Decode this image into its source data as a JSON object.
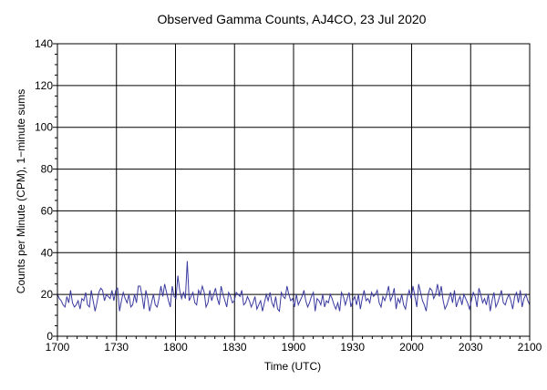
{
  "chart_data": {
    "type": "line",
    "title": "Observed Gamma Counts, AJ4CO, 23 Jul 2020",
    "xlabel": "Time (UTC)",
    "ylabel": "Counts per Minute (CPM), 1−minute sums",
    "x_tick_labels": [
      "1700",
      "1730",
      "1800",
      "1830",
      "1900",
      "1930",
      "2000",
      "2030",
      "2100"
    ],
    "y_ticks": [
      0,
      20,
      40,
      60,
      80,
      100,
      120,
      140
    ],
    "xlim_minutes": [
      0,
      240
    ],
    "ylim": [
      0,
      140
    ],
    "grid": true,
    "line_color": "#3a3aa0",
    "series": [
      {
        "values": [
          20,
          18,
          17,
          15,
          14,
          19,
          16,
          22,
          16,
          14,
          15,
          17,
          13,
          18,
          17,
          21,
          15,
          14,
          22,
          17,
          12,
          16,
          21,
          23,
          22,
          17,
          20,
          19,
          18,
          22,
          17,
          22,
          23,
          12,
          17,
          21,
          18,
          16,
          20,
          14,
          15,
          20,
          16,
          24,
          24,
          19,
          13,
          22,
          18,
          12,
          16,
          20,
          15,
          14,
          18,
          24,
          19,
          25,
          21,
          17,
          14,
          24,
          19,
          18,
          29,
          22,
          18,
          21,
          18,
          36,
          17,
          19,
          21,
          16,
          15,
          22,
          20,
          24,
          21,
          14,
          16,
          22,
          17,
          20,
          23,
          18,
          15,
          24,
          20,
          17,
          14,
          21,
          19,
          16,
          17,
          21,
          20,
          19,
          22,
          15,
          16,
          19,
          17,
          14,
          16,
          19,
          13,
          15,
          17,
          12,
          16,
          20,
          17,
          21,
          16,
          14,
          19,
          13,
          12,
          21,
          19,
          18,
          24,
          20,
          17,
          18,
          14,
          20,
          15,
          17,
          19,
          22,
          17,
          14,
          16,
          19,
          21,
          12,
          18,
          17,
          15,
          20,
          14,
          17,
          16,
          20,
          18,
          15,
          13,
          16,
          12,
          21,
          19,
          15,
          18,
          21,
          14,
          17,
          19,
          15,
          20,
          13,
          18,
          22,
          17,
          18,
          16,
          21,
          19,
          20,
          22,
          16,
          14,
          19,
          17,
          20,
          24,
          17,
          19,
          23,
          13,
          18,
          16,
          20,
          15,
          13,
          19,
          22,
          18,
          24,
          19,
          14,
          25,
          21,
          17,
          15,
          12,
          20,
          23,
          22,
          18,
          20,
          25,
          19,
          24,
          17,
          13,
          15,
          18,
          21,
          16,
          22,
          14,
          17,
          19,
          15,
          20,
          18,
          16,
          13,
          17,
          21,
          19,
          14,
          23,
          20,
          16,
          18,
          15,
          20,
          12,
          17,
          21,
          14,
          16,
          19,
          22,
          16,
          15,
          18,
          20,
          17,
          13,
          19,
          21,
          16,
          22,
          14,
          18,
          20,
          17,
          15
        ]
      }
    ]
  }
}
